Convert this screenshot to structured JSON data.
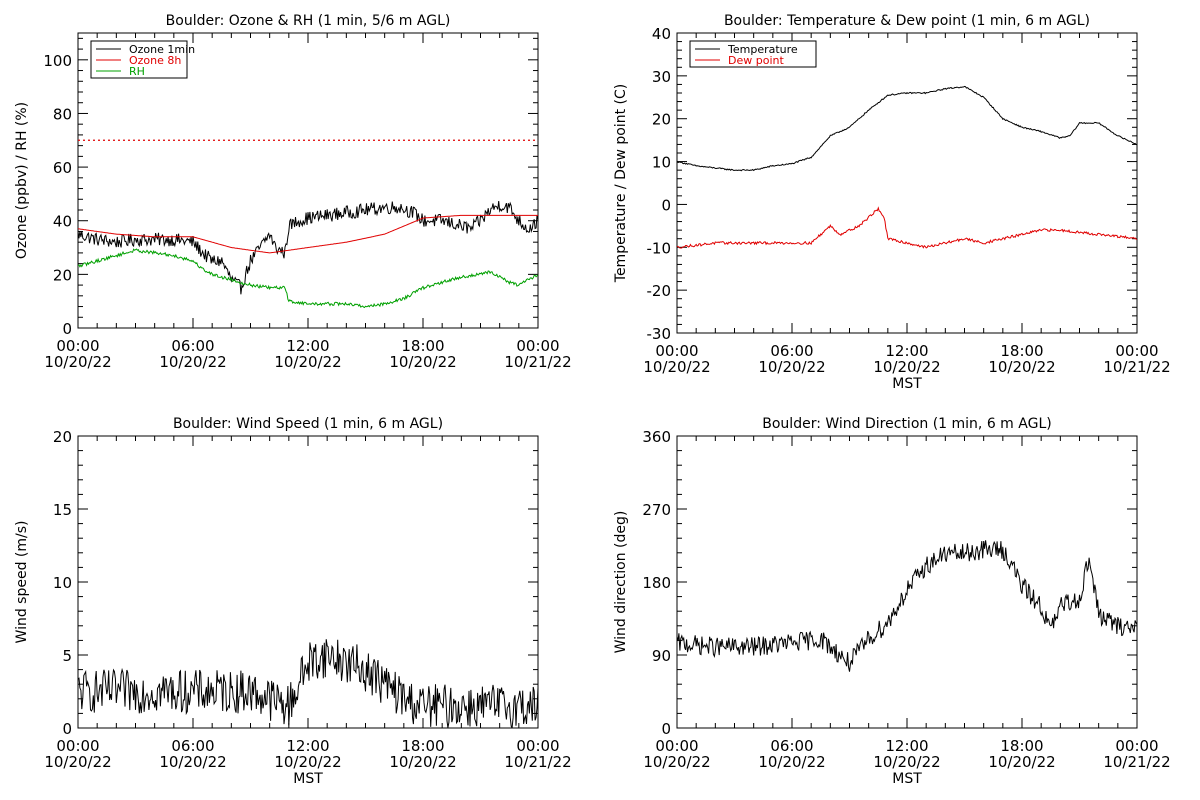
{
  "chart_data": [
    {
      "type": "line",
      "title": "Boulder: Ozone & RH (1 min, 5/6 m AGL)",
      "xlabel": "",
      "ylabel": "Ozone (ppbv) / RH (%)",
      "x_ticks": [
        "00:00",
        "06:00",
        "12:00",
        "18:00",
        "00:00"
      ],
      "x_dates": [
        "10/20/22",
        "10/20/22",
        "10/20/22",
        "10/20/22",
        "10/21/22"
      ],
      "xlim_hours": [
        0,
        24
      ],
      "ylim": [
        0,
        110
      ],
      "y_ticks": [
        0,
        20,
        40,
        60,
        80,
        100
      ],
      "legend_position": "top-left",
      "reference_line": {
        "y": 70,
        "color": "#e00000",
        "style": "dotted"
      },
      "series": [
        {
          "name": "Ozone 1min",
          "color": "#000000",
          "noise": 2.5,
          "x": [
            0,
            1,
            2,
            3,
            4,
            5,
            6,
            6.5,
            7,
            7.5,
            8,
            8.5,
            9,
            9.5,
            10,
            10.3,
            10.8,
            11,
            11.5,
            12,
            13,
            14,
            15,
            16,
            16.8,
            17.5,
            18,
            19,
            20,
            20.5,
            21,
            21.5,
            22,
            22.5,
            23,
            23.5,
            24
          ],
          "y": [
            35,
            33,
            32,
            33,
            33,
            33,
            32,
            28,
            25,
            25,
            18,
            15,
            25,
            30,
            35,
            30,
            28,
            38,
            40,
            41,
            42,
            43,
            44,
            45,
            45,
            43,
            40,
            40,
            38,
            37,
            40,
            44,
            46,
            45,
            40,
            37,
            40
          ]
        },
        {
          "name": "Ozone 8h",
          "color": "#e00000",
          "noise": 0,
          "x": [
            0,
            2,
            4,
            6,
            8,
            10,
            11,
            12,
            14,
            16,
            17,
            18,
            20,
            22,
            24
          ],
          "y": [
            37,
            35,
            34,
            34,
            30,
            28,
            29,
            30,
            32,
            35,
            38,
            41,
            42,
            42,
            42
          ]
        },
        {
          "name": "RH",
          "color": "#00a000",
          "noise": 0.6,
          "x": [
            0,
            1,
            2,
            3,
            4,
            5,
            6,
            6.5,
            7,
            7.5,
            8,
            9,
            10,
            10.8,
            11,
            12,
            13,
            14,
            15,
            16,
            17,
            18,
            19,
            20,
            21,
            21.5,
            22,
            22.5,
            23,
            24
          ],
          "y": [
            23,
            25,
            27,
            29,
            28,
            27,
            25,
            22,
            20,
            19,
            18,
            16,
            15,
            15,
            10,
            9,
            9,
            9,
            8,
            9,
            11,
            15,
            17,
            19,
            20,
            21,
            19,
            17,
            16,
            20
          ]
        }
      ]
    },
    {
      "type": "line",
      "title": "Boulder: Temperature & Dew point (1 min, 6 m AGL)",
      "xlabel": "MST",
      "ylabel": "Temperature / Dew point (C)",
      "x_ticks": [
        "00:00",
        "06:00",
        "12:00",
        "18:00",
        "00:00"
      ],
      "x_dates": [
        "10/20/22",
        "10/20/22",
        "10/20/22",
        "10/20/22",
        "10/21/22"
      ],
      "xlim_hours": [
        0,
        24
      ],
      "ylim": [
        -30,
        40
      ],
      "y_ticks": [
        -30,
        -20,
        -10,
        0,
        10,
        20,
        30,
        40
      ],
      "legend_position": "top-left",
      "series": [
        {
          "name": "Temperature",
          "color": "#000000",
          "noise": 0.15,
          "x": [
            0,
            1,
            2,
            3,
            4,
            5,
            6,
            7,
            8,
            9,
            10,
            11,
            12,
            13,
            14,
            15,
            16,
            17,
            18,
            19,
            20,
            20.5,
            21,
            22,
            23,
            24
          ],
          "y": [
            10,
            9,
            8.5,
            8,
            8,
            9,
            9.5,
            11,
            16,
            18,
            22,
            25.5,
            26,
            26,
            27,
            27.5,
            25,
            20,
            18,
            17,
            15.5,
            16,
            19,
            19,
            16,
            14
          ]
        },
        {
          "name": "Dew point",
          "color": "#e00000",
          "noise": 0.3,
          "x": [
            0,
            1,
            2,
            3,
            4,
            5,
            6,
            7,
            7.5,
            8,
            8.5,
            9,
            9.5,
            10,
            10.5,
            10.8,
            11,
            12,
            13,
            14,
            15,
            16,
            17,
            18,
            19,
            20,
            21,
            22,
            23,
            24
          ],
          "y": [
            -10,
            -9.5,
            -9,
            -9,
            -9,
            -9,
            -9,
            -9,
            -7,
            -5,
            -7,
            -6,
            -5,
            -3,
            -1,
            -3,
            -8,
            -9,
            -10,
            -9,
            -8,
            -9,
            -8,
            -7,
            -6,
            -6,
            -6.5,
            -7,
            -7.5,
            -8
          ]
        }
      ]
    },
    {
      "type": "line",
      "title": "Boulder: Wind Speed (1 min, 6 m AGL)",
      "xlabel": "MST",
      "ylabel": "Wind speed (m/s)",
      "x_ticks": [
        "00:00",
        "06:00",
        "12:00",
        "18:00",
        "00:00"
      ],
      "x_dates": [
        "10/20/22",
        "10/20/22",
        "10/20/22",
        "10/20/22",
        "10/21/22"
      ],
      "xlim_hours": [
        0,
        24
      ],
      "ylim": [
        0,
        20
      ],
      "y_ticks": [
        0,
        5,
        10,
        15,
        20
      ],
      "series": [
        {
          "name": "",
          "color": "#000000",
          "noise": 1.5,
          "x": [
            0,
            2,
            4,
            6,
            8,
            9,
            10,
            11,
            11.5,
            12,
            13,
            14,
            15,
            16,
            17,
            18,
            19,
            20,
            21,
            22,
            23,
            24
          ],
          "y": [
            2.5,
            2.5,
            2.5,
            2.5,
            2.5,
            2.5,
            2,
            1.5,
            3,
            4.5,
            5,
            4.5,
            4,
            3,
            2,
            1.5,
            1.5,
            1.5,
            1.5,
            1.5,
            1.5,
            1.5
          ]
        }
      ]
    },
    {
      "type": "line",
      "title": "Boulder: Wind Direction (1 min, 6 m AGL)",
      "xlabel": "MST",
      "ylabel": "Wind direction (deg)",
      "x_ticks": [
        "00:00",
        "06:00",
        "12:00",
        "18:00",
        "00:00"
      ],
      "x_dates": [
        "10/20/22",
        "10/20/22",
        "10/20/22",
        "10/20/22",
        "10/21/22"
      ],
      "xlim_hours": [
        0,
        24
      ],
      "ylim": [
        0,
        360
      ],
      "y_ticks": [
        0,
        90,
        180,
        270,
        360
      ],
      "series": [
        {
          "name": "",
          "color": "#000000",
          "noise": 12,
          "x": [
            0,
            2,
            4,
            6,
            7.5,
            8.5,
            9,
            10,
            11,
            12,
            13,
            14,
            15,
            16,
            17,
            17.5,
            18,
            19,
            19.5,
            20,
            21,
            21.5,
            22,
            23,
            24
          ],
          "y": [
            105,
            100,
            100,
            105,
            110,
            90,
            80,
            110,
            130,
            170,
            200,
            215,
            215,
            220,
            220,
            200,
            175,
            150,
            120,
            150,
            160,
            210,
            140,
            125,
            125
          ]
        }
      ]
    }
  ]
}
